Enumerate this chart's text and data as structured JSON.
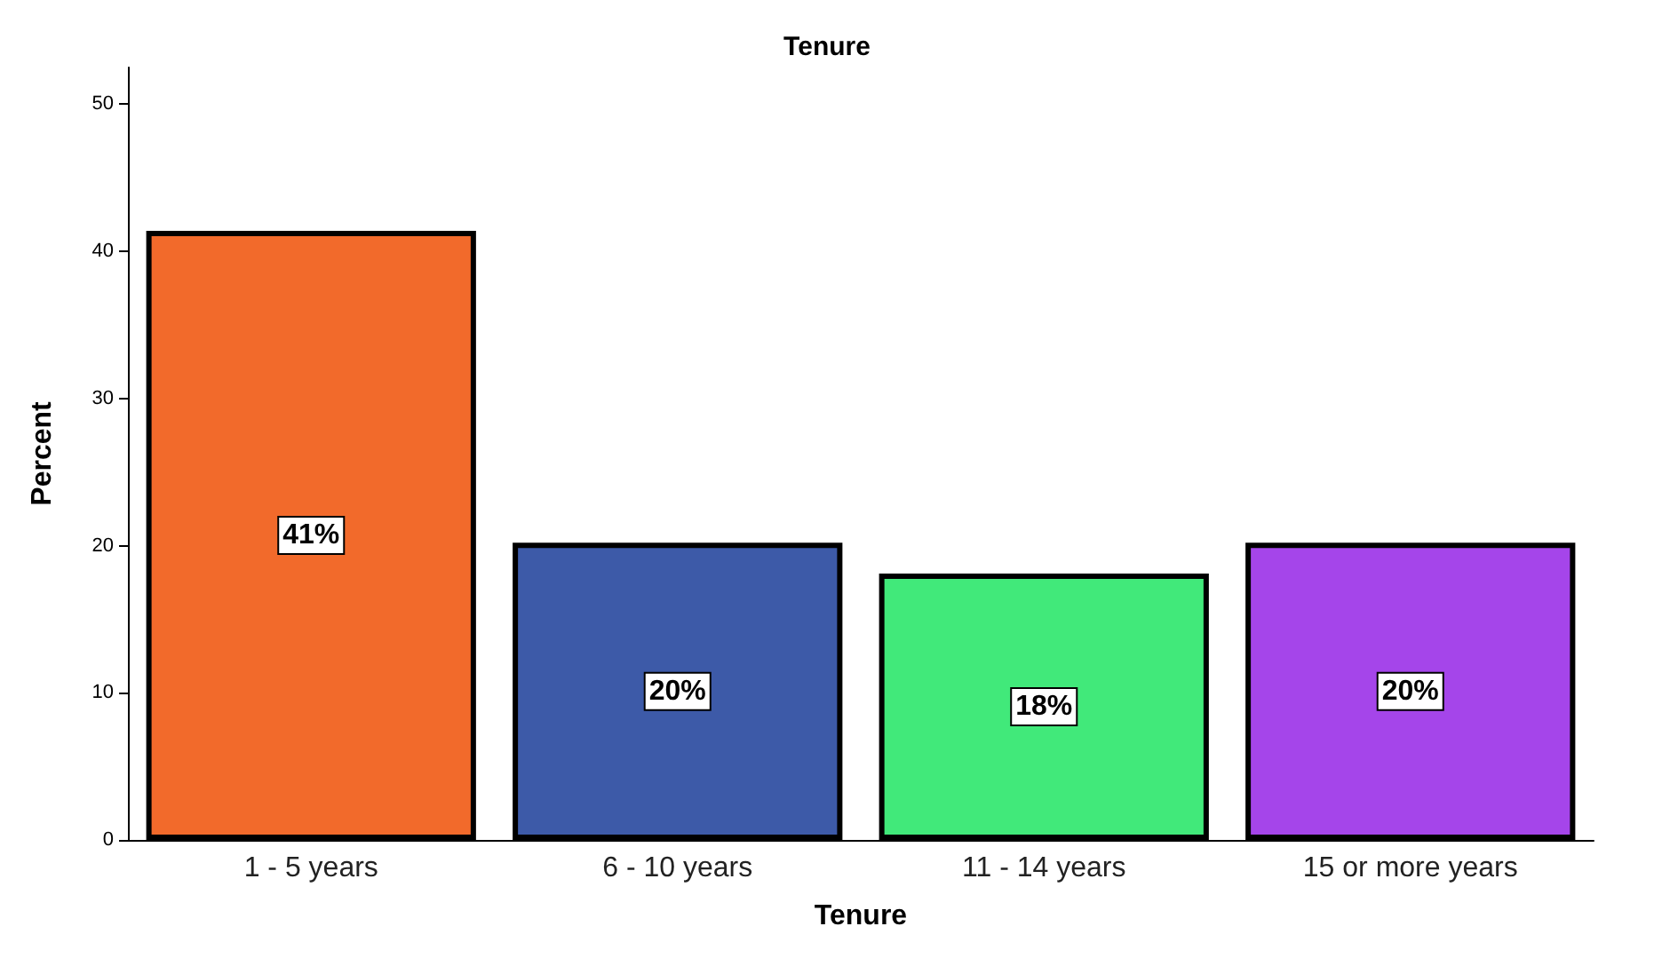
{
  "chart_data": {
    "type": "bar",
    "title": "Tenure",
    "xlabel": "Tenure",
    "ylabel": "Percent",
    "categories": [
      "1 - 5 years",
      "6 - 10 years",
      "11 - 14 years",
      "15 or more years"
    ],
    "values": [
      41.4,
      20.2,
      18.1,
      20.2
    ],
    "value_labels": [
      "41%",
      "20%",
      "18%",
      "20%"
    ],
    "colors": [
      "#f26a2b",
      "#3d5aa8",
      "#41e97a",
      "#a545ea"
    ],
    "ylim": [
      0,
      52.5
    ],
    "yticks": [
      0,
      10,
      20,
      30,
      40,
      50
    ],
    "grid": false
  }
}
